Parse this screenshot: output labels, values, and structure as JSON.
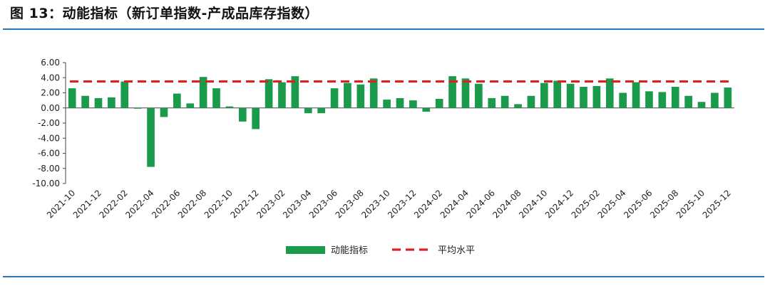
{
  "figure": {
    "title": "图 13：动能指标（新订单指数-产成品库存指数）"
  },
  "colors": {
    "bar": "#1a9b4b",
    "avg_line": "#e02020",
    "rule": "#2e75b6"
  },
  "chart_data": {
    "type": "bar",
    "title": "",
    "xlabel": "",
    "ylabel": "",
    "ylim": [
      -10,
      6
    ],
    "yticks": [
      6,
      4,
      2,
      0,
      -2,
      -4,
      -6,
      -8,
      -10
    ],
    "ytick_labels": [
      "6.00",
      "4.00",
      "2.00",
      "0.00",
      "-2.00",
      "-4.00",
      "-6.00",
      "-8.00",
      "-10.00"
    ],
    "grid": false,
    "legend_position": "bottom",
    "categories": [
      "2021-10",
      "2021-11",
      "2021-12",
      "2022-01",
      "2022-02",
      "2022-03",
      "2022-04",
      "2022-05",
      "2022-06",
      "2022-07",
      "2022-08",
      "2022-09",
      "2022-10",
      "2022-11",
      "2022-12",
      "2023-01",
      "2023-02",
      "2023-03",
      "2023-04",
      "2023-05",
      "2023-06",
      "2023-07",
      "2023-08",
      "2023-09",
      "2023-10",
      "2023-11",
      "2023-12",
      "2024-01",
      "2024-02",
      "2024-03",
      "2024-04",
      "2024-05",
      "2024-06",
      "2024-07",
      "2024-08",
      "2024-09",
      "2024-10",
      "2024-11",
      "2024-12",
      "2025-01",
      "2025-02",
      "2025-03",
      "2025-04",
      "2025-05",
      "2025-06",
      "2025-07",
      "2025-08",
      "2025-09",
      "2025-10",
      "2025-11",
      "2025-12"
    ],
    "x_tick_labels": [
      "2021-10",
      "2021-12",
      "2022-02",
      "2022-04",
      "2022-06",
      "2022-08",
      "2022-10",
      "2022-12",
      "2023-02",
      "2023-04",
      "2023-06",
      "2023-08",
      "2023-10",
      "2023-12",
      "2024-02",
      "2024-04",
      "2024-06",
      "2024-08",
      "2024-10",
      "2024-12",
      "2025-02",
      "2025-04",
      "2025-06",
      "2025-08",
      "2025-10",
      "2025-12"
    ],
    "series": [
      {
        "name": "动能指标",
        "type": "bar",
        "values": [
          2.6,
          1.6,
          1.3,
          1.4,
          3.5,
          -0.1,
          -7.8,
          -1.2,
          1.9,
          0.6,
          4.1,
          2.6,
          0.2,
          -1.8,
          -2.8,
          3.8,
          3.4,
          4.2,
          -0.7,
          -0.7,
          2.6,
          3.3,
          3.1,
          3.9,
          1.1,
          1.3,
          1.0,
          -0.5,
          1.2,
          4.2,
          3.9,
          3.2,
          1.3,
          1.6,
          0.5,
          1.6,
          3.3,
          3.6,
          3.2,
          2.8,
          2.9,
          3.9,
          2.0,
          3.4,
          2.2,
          2.1,
          2.8,
          1.6,
          0.8,
          2.0,
          2.7
        ]
      },
      {
        "name": "平均水平",
        "type": "line",
        "style": "dashed",
        "value": 3.5
      }
    ]
  }
}
